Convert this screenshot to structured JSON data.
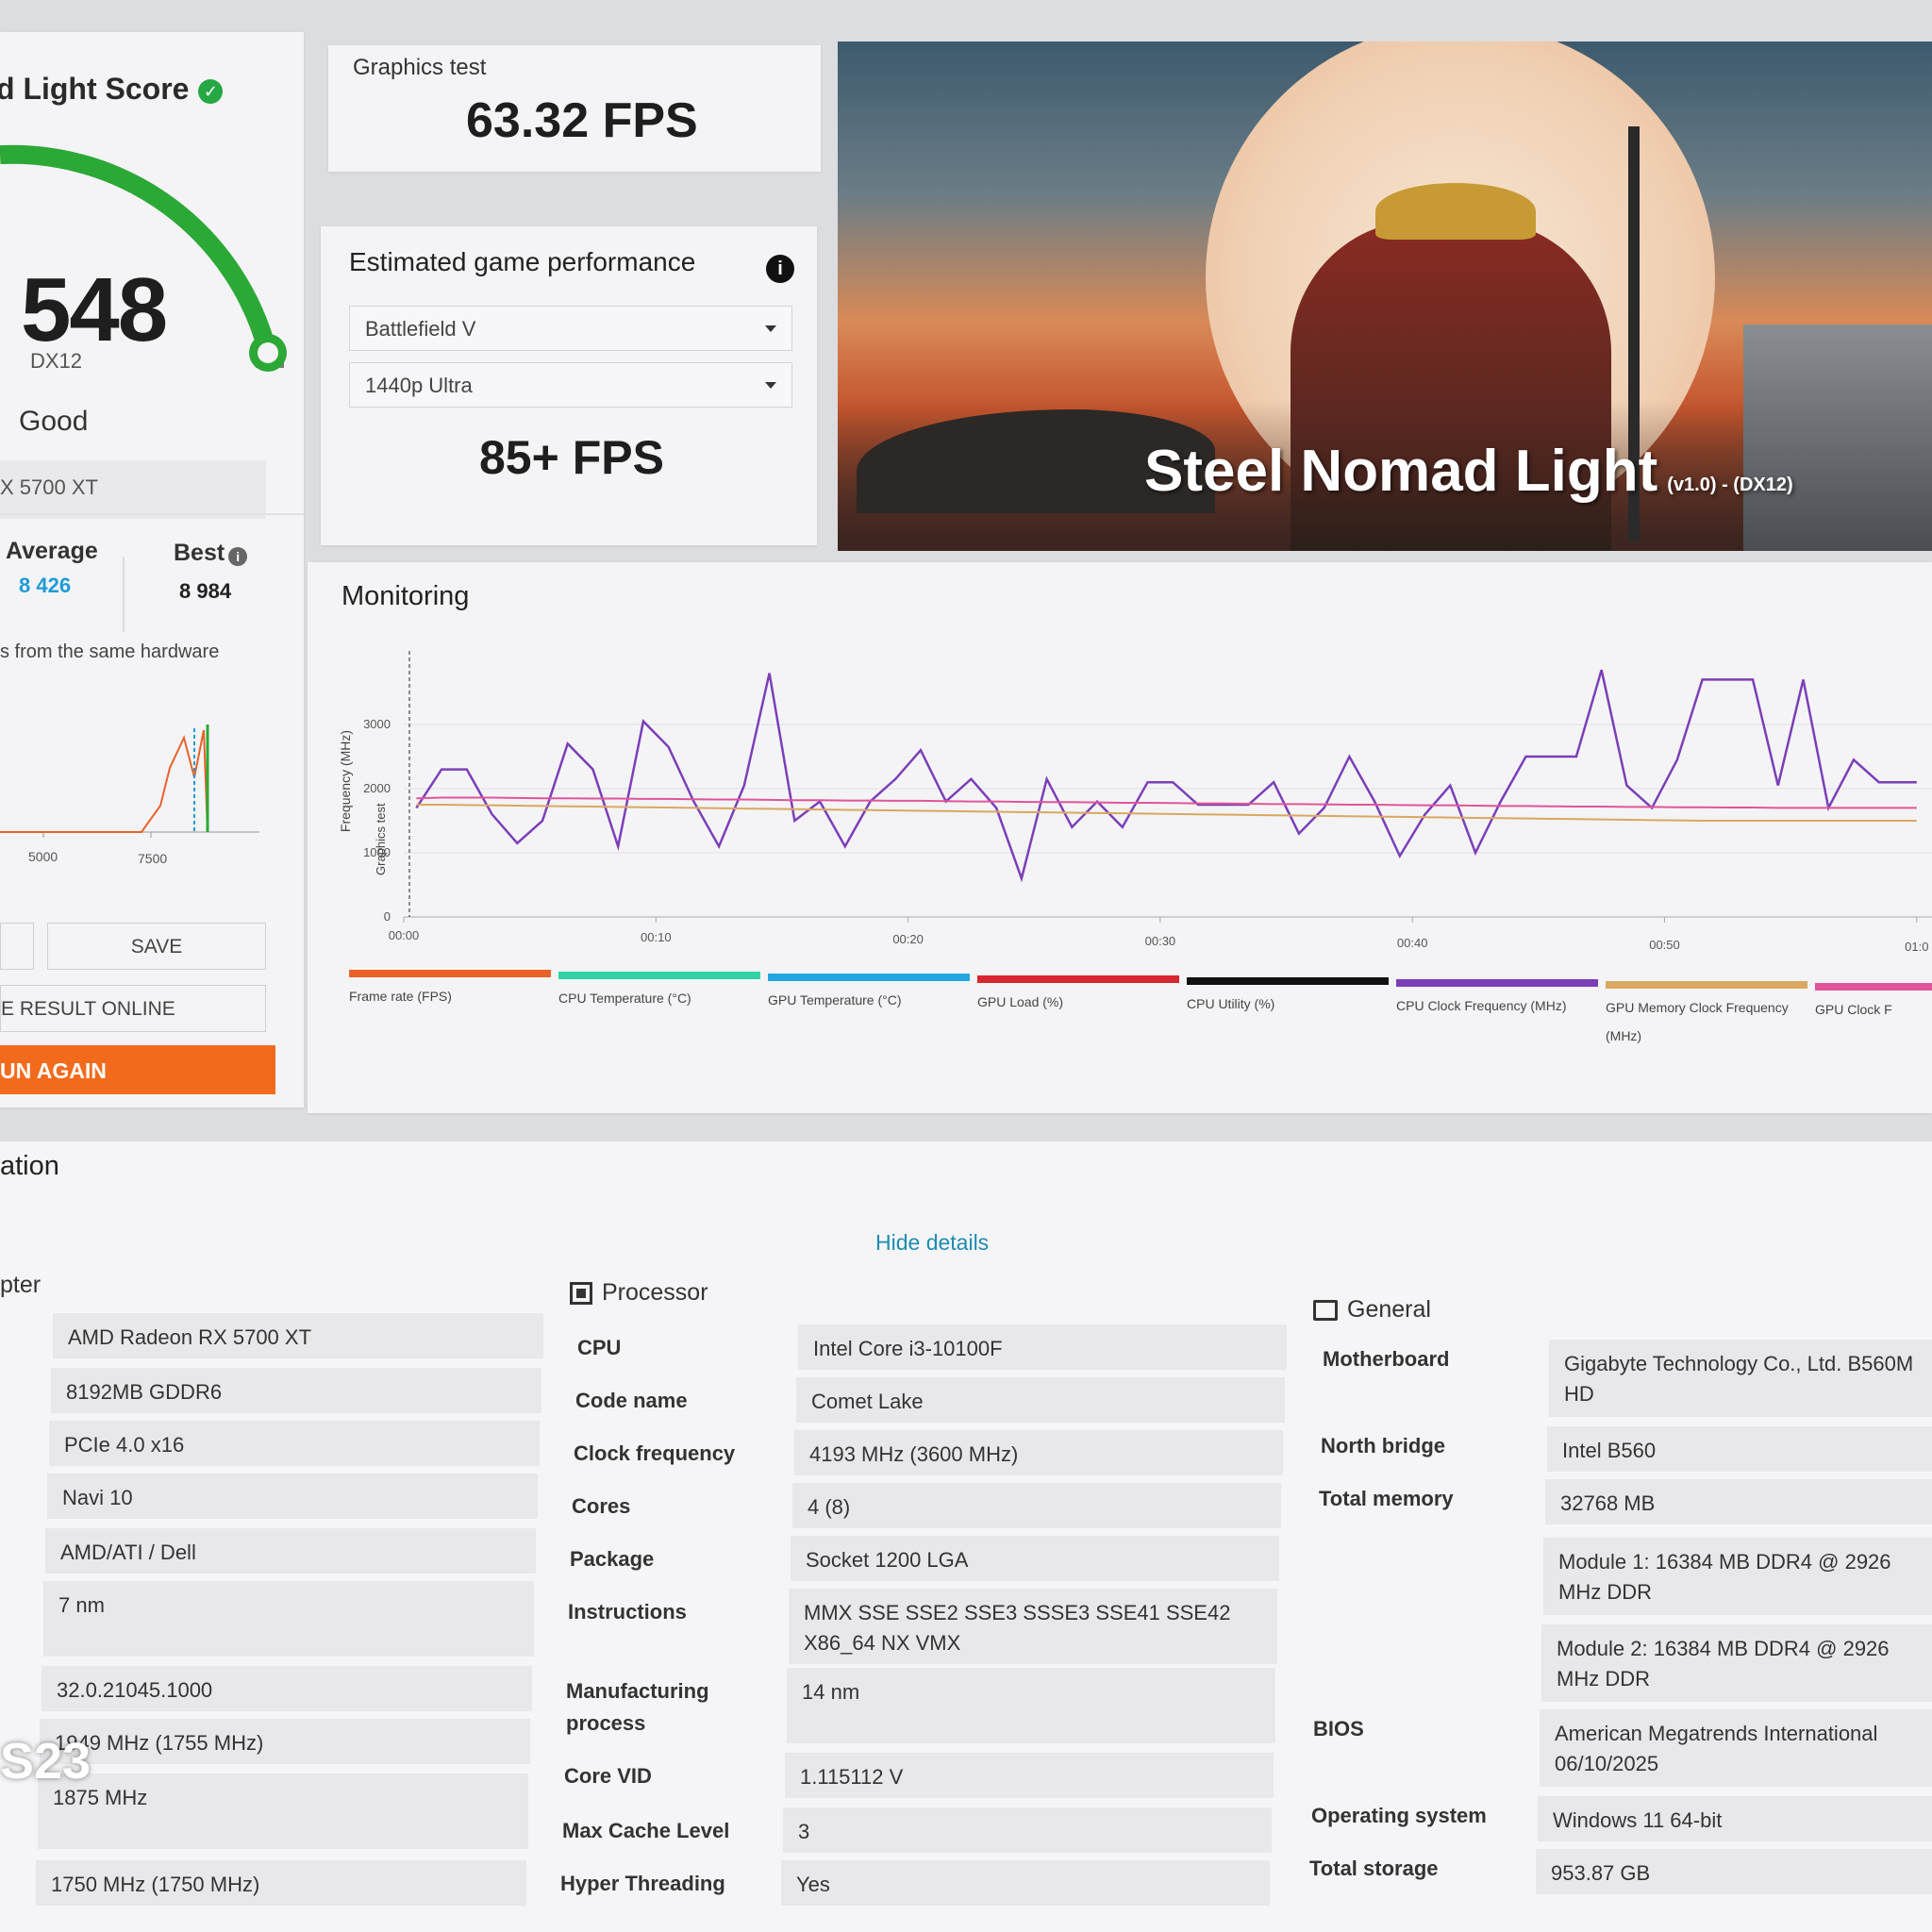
{
  "score_card": {
    "title": "d Light Score",
    "score": "548",
    "api": "DX12",
    "rating": "Good",
    "gpu": "X 5700 XT",
    "average_label": "Average",
    "average_value": "8 426",
    "best_label": "Best",
    "best_value": "8 984",
    "hardware_note": "s from the same hardware",
    "mini_chart_ticks": [
      "5000",
      "7500"
    ],
    "save_label": "SAVE",
    "result_online_label": "E RESULT ONLINE",
    "run_again_label": "UN AGAIN",
    "colors": {
      "gauge": "#2ca836",
      "run_again": "#f26b1d",
      "average": "#1e9bd7"
    }
  },
  "graphics_test": {
    "label": "Graphics test",
    "value": "63.32 FPS"
  },
  "estimated": {
    "title": "Estimated game performance",
    "game": "Battlefield V",
    "preset": "1440p Ultra",
    "value": "85+ FPS"
  },
  "banner": {
    "title": "Steel Nomad Light",
    "subtitle": "(v1.0) - (DX12)"
  },
  "monitoring": {
    "title": "Monitoring",
    "ylabel": "Frequency (MHz)",
    "marker_label": "Graphics test",
    "legend": [
      {
        "name": "Frame rate (FPS)",
        "color": "#e8622a"
      },
      {
        "name": "CPU Temperature (°C)",
        "color": "#2fd3a6"
      },
      {
        "name": "GPU Temperature (°C)",
        "color": "#22a6e0"
      },
      {
        "name": "GPU Load (%)",
        "color": "#d8262f"
      },
      {
        "name": "CPU Utility (%)",
        "color": "#111111"
      },
      {
        "name": "CPU Clock Frequency (MHz)",
        "color": "#7b3fb8"
      },
      {
        "name": "GPU Memory Clock Frequency",
        "name2": "(MHz)",
        "color": "#d9a862"
      },
      {
        "name": "GPU Clock F",
        "color": "#e0559a"
      }
    ]
  },
  "chart_data": {
    "type": "line",
    "ylabel": "Frequency (MHz)",
    "ylim": [
      0,
      4000
    ],
    "y_ticks": [
      "0",
      "1000",
      "2000",
      "3000"
    ],
    "x_ticks": [
      "00:00",
      "00:10",
      "00:20",
      "00:30",
      "00:40",
      "00:50",
      "01:0"
    ],
    "x": [
      0.5,
      1.5,
      2.5,
      3.5,
      4.5,
      5.5,
      6.5,
      7.5,
      8.5,
      9.5,
      10.5,
      11.5,
      12.5,
      13.5,
      14.5,
      15.5,
      16.5,
      17.5,
      18.5,
      19.5,
      20.5,
      21.5,
      22.5,
      23.5,
      24.5,
      25.5,
      26.5,
      27.5,
      28.5,
      29.5,
      30.5,
      31.5,
      32.5,
      33.5,
      34.5,
      35.5,
      36.5,
      37.5,
      38.5,
      39.5,
      40.5,
      41.5,
      42.5,
      43.5,
      44.5,
      45.5,
      46.5,
      47.5,
      48.5,
      49.5,
      50.5,
      51.5,
      52.5,
      53.5,
      54.5,
      55.5,
      56.5,
      57.5,
      58.5,
      59.5,
      60
    ],
    "series": [
      {
        "name": "CPU Clock Frequency (MHz)",
        "color": "#7b3fb8",
        "values": [
          1700,
          2300,
          2300,
          1600,
          1150,
          1500,
          2700,
          2300,
          1100,
          3050,
          2650,
          1800,
          1100,
          2050,
          3800,
          1500,
          1800,
          1100,
          1800,
          2150,
          2600,
          1800,
          2150,
          1700,
          600,
          2150,
          1400,
          1800,
          1400,
          2100,
          2100,
          1750,
          1750,
          1750,
          2100,
          1300,
          1700,
          2500,
          1800,
          950,
          1600,
          2050,
          1000,
          1800,
          2500,
          2500,
          2500,
          3850,
          2050,
          1700,
          2450,
          3700,
          3700,
          3700,
          2050,
          3700,
          1700,
          2450,
          2100,
          2100,
          2100
        ]
      },
      {
        "name": "GPU Clock F",
        "color": "#e0559a",
        "values": [
          1850,
          1860,
          1860,
          1860,
          1855,
          1850,
          1850,
          1845,
          1845,
          1840,
          1840,
          1835,
          1830,
          1830,
          1825,
          1820,
          1820,
          1815,
          1815,
          1810,
          1810,
          1805,
          1800,
          1800,
          1795,
          1790,
          1790,
          1785,
          1780,
          1780,
          1775,
          1770,
          1770,
          1765,
          1760,
          1760,
          1755,
          1750,
          1750,
          1745,
          1740,
          1740,
          1735,
          1730,
          1730,
          1725,
          1720,
          1720,
          1715,
          1715,
          1710,
          1710,
          1705,
          1705,
          1700,
          1700,
          1700,
          1700,
          1700,
          1700,
          1700
        ]
      },
      {
        "name": "GPU Memory Clock Frequency (MHz)",
        "color": "#d9a862",
        "values": [
          1750,
          1750,
          1745,
          1740,
          1735,
          1730,
          1725,
          1720,
          1715,
          1710,
          1705,
          1700,
          1695,
          1690,
          1685,
          1680,
          1675,
          1670,
          1665,
          1660,
          1655,
          1650,
          1645,
          1640,
          1635,
          1630,
          1625,
          1620,
          1615,
          1610,
          1605,
          1600,
          1595,
          1590,
          1585,
          1580,
          1575,
          1570,
          1565,
          1560,
          1555,
          1550,
          1545,
          1540,
          1535,
          1530,
          1525,
          1520,
          1515,
          1510,
          1505,
          1500,
          1500,
          1500,
          1500,
          1500,
          1500,
          1500,
          1500,
          1500,
          1500
        ]
      }
    ]
  },
  "system_info": {
    "title": "ation",
    "hide_details": "Hide details",
    "adapter": {
      "heading": "pter",
      "values": [
        "AMD Radeon RX 5700 XT",
        "8192MB GDDR6",
        "PCIe 4.0 x16",
        "Navi 10",
        "AMD/ATI / Dell",
        "7 nm",
        "32.0.21045.1000",
        "1949 MHz (1755 MHz)",
        "1875 MHz",
        "1750 MHz (1750 MHz)"
      ]
    },
    "processor": {
      "heading": "Processor",
      "rows": [
        {
          "label": "CPU",
          "value": "Intel Core i3-10100F"
        },
        {
          "label": "Code name",
          "value": "Comet Lake"
        },
        {
          "label": "Clock frequency",
          "value": "4193 MHz (3600 MHz)"
        },
        {
          "label": "Cores",
          "value": "4 (8)"
        },
        {
          "label": "Package",
          "value": "Socket 1200 LGA"
        },
        {
          "label": "Instructions",
          "value": "MMX SSE SSE2 SSE3 SSSE3 SSE41 SSE42 X86_64 NX VMX"
        },
        {
          "label": "Manufacturing process",
          "value": "14 nm"
        },
        {
          "label": "Core VID",
          "value": "1.115112 V"
        },
        {
          "label": "Max Cache Level",
          "value": "3"
        },
        {
          "label": "Hyper Threading",
          "value": "Yes"
        }
      ]
    },
    "general": {
      "heading": "General",
      "rows": [
        {
          "label": "Motherboard",
          "value": "Gigabyte Technology Co., Ltd. B560M HD"
        },
        {
          "label": "North bridge",
          "value": "Intel B560"
        },
        {
          "label": "Total memory",
          "value": "32768 MB"
        },
        {
          "label": "",
          "value": "Module 1: 16384 MB DDR4 @ 2926 MHz DDR"
        },
        {
          "label": "",
          "value": "Module 2: 16384 MB DDR4 @ 2926 MHz DDR"
        },
        {
          "label": "BIOS",
          "value": "American Megatrends International 06/10/2025"
        },
        {
          "label": "Operating system",
          "value": "Windows 11 64-bit"
        },
        {
          "label": "Total storage",
          "value": "953.87 GB"
        }
      ]
    }
  },
  "watermark": "S23"
}
